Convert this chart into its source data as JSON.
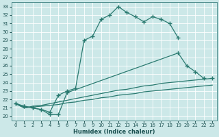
{
  "xlabel": "Humidex (Indice chaleur)",
  "bg_color": "#cce8e8",
  "line_color": "#2a7a70",
  "grid_color": "#b0d0d0",
  "xlim": [
    -0.5,
    23.5
  ],
  "ylim": [
    19.5,
    33.5
  ],
  "xticks": [
    0,
    1,
    2,
    3,
    4,
    5,
    6,
    7,
    8,
    9,
    10,
    11,
    12,
    13,
    14,
    15,
    16,
    17,
    18,
    19,
    20,
    21,
    22,
    23
  ],
  "yticks": [
    20,
    21,
    22,
    23,
    24,
    25,
    26,
    27,
    28,
    29,
    30,
    31,
    32,
    33
  ],
  "line1_x": [
    0,
    1,
    2,
    3,
    4,
    5,
    6,
    7,
    8,
    9,
    10,
    11,
    12,
    13,
    14,
    15,
    16,
    17,
    18,
    19
  ],
  "line1_y": [
    21.5,
    21.2,
    21.0,
    20.8,
    20.5,
    22.5,
    23.0,
    23.3,
    29.0,
    29.5,
    31.5,
    32.0,
    33.0,
    32.3,
    31.8,
    31.2,
    31.8,
    31.5,
    31.0,
    29.3
  ],
  "line2_x": [
    0,
    1,
    2,
    3,
    4,
    5,
    6,
    19,
    20,
    21,
    22
  ],
  "line2_y": [
    21.5,
    21.2,
    21.0,
    20.8,
    20.2,
    20.2,
    22.8,
    27.5,
    26.0,
    25.3,
    24.5
  ],
  "line3_x": [
    0,
    1,
    2,
    3,
    4,
    5,
    6,
    7,
    8,
    9,
    10,
    11,
    12,
    13,
    14,
    15,
    16,
    17,
    18,
    19,
    20,
    21,
    22,
    23
  ],
  "line3_y": [
    21.5,
    21.0,
    21.2,
    21.3,
    21.5,
    21.7,
    21.9,
    22.1,
    22.3,
    22.5,
    22.7,
    22.9,
    23.1,
    23.2,
    23.4,
    23.6,
    23.7,
    23.9,
    24.0,
    24.1,
    24.2,
    24.3,
    24.4,
    24.5
  ],
  "line4_x": [
    0,
    1,
    2,
    3,
    4,
    5,
    6,
    7,
    8,
    9,
    10,
    11,
    12,
    13,
    14,
    15,
    16,
    17,
    18,
    19,
    20,
    21,
    22,
    23
  ],
  "line4_y": [
    21.5,
    21.0,
    21.1,
    21.2,
    21.3,
    21.4,
    21.6,
    21.7,
    21.9,
    22.0,
    22.2,
    22.3,
    22.5,
    22.6,
    22.7,
    22.9,
    23.0,
    23.1,
    23.2,
    23.3,
    23.4,
    23.5,
    23.6,
    23.7
  ]
}
